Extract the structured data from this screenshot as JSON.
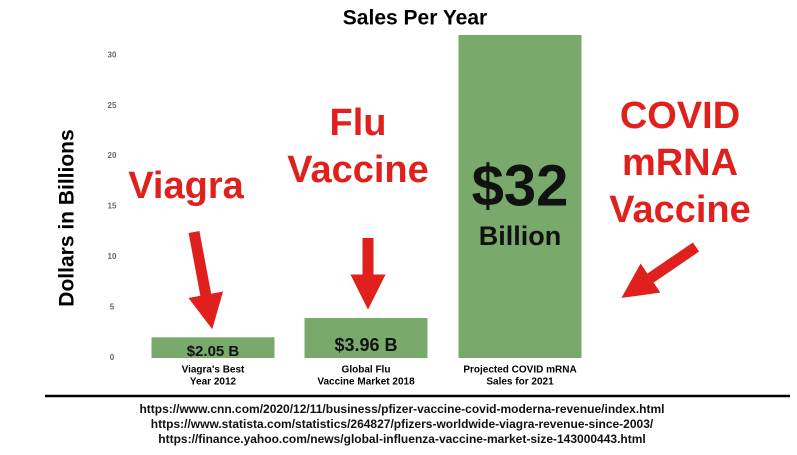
{
  "chart_data": {
    "type": "bar",
    "title": "Sales Per Year",
    "y_label": "Dollars in Billions",
    "categories": [
      [
        "Viagra's Best",
        "Year 2012"
      ],
      [
        "Global Flu",
        "Vaccine Market 2018"
      ],
      [
        "Projected COVID mRNA",
        "Sales for 2021"
      ]
    ],
    "values": [
      2.05,
      3.96,
      32
    ],
    "value_labels": [
      [
        "$2.05 B"
      ],
      [
        "$3.96 B"
      ],
      [
        "$32",
        "Billion"
      ]
    ],
    "color": "#79a96b",
    "ylim": [
      0,
      32
    ],
    "yticks": [
      0,
      5,
      10,
      15,
      20,
      25,
      30
    ],
    "grid": false,
    "annotations": [
      [
        "Viagra"
      ],
      [
        "Flu",
        "Vaccine"
      ],
      [
        "COVID",
        "mRNA",
        "Vaccine"
      ]
    ],
    "annotation_color": "#e0201c",
    "sources": [
      "https://www.cnn.com/2020/12/11/business/pfizer-vaccine-covid-moderna-revenue/index.html",
      "https://www.statista.com/statistics/264827/pfizers-worldwide-viagra-revenue-since-2003/",
      "https://finance.yahoo.com/news/global-influenza-vaccine-market-size-143000443.html"
    ]
  }
}
